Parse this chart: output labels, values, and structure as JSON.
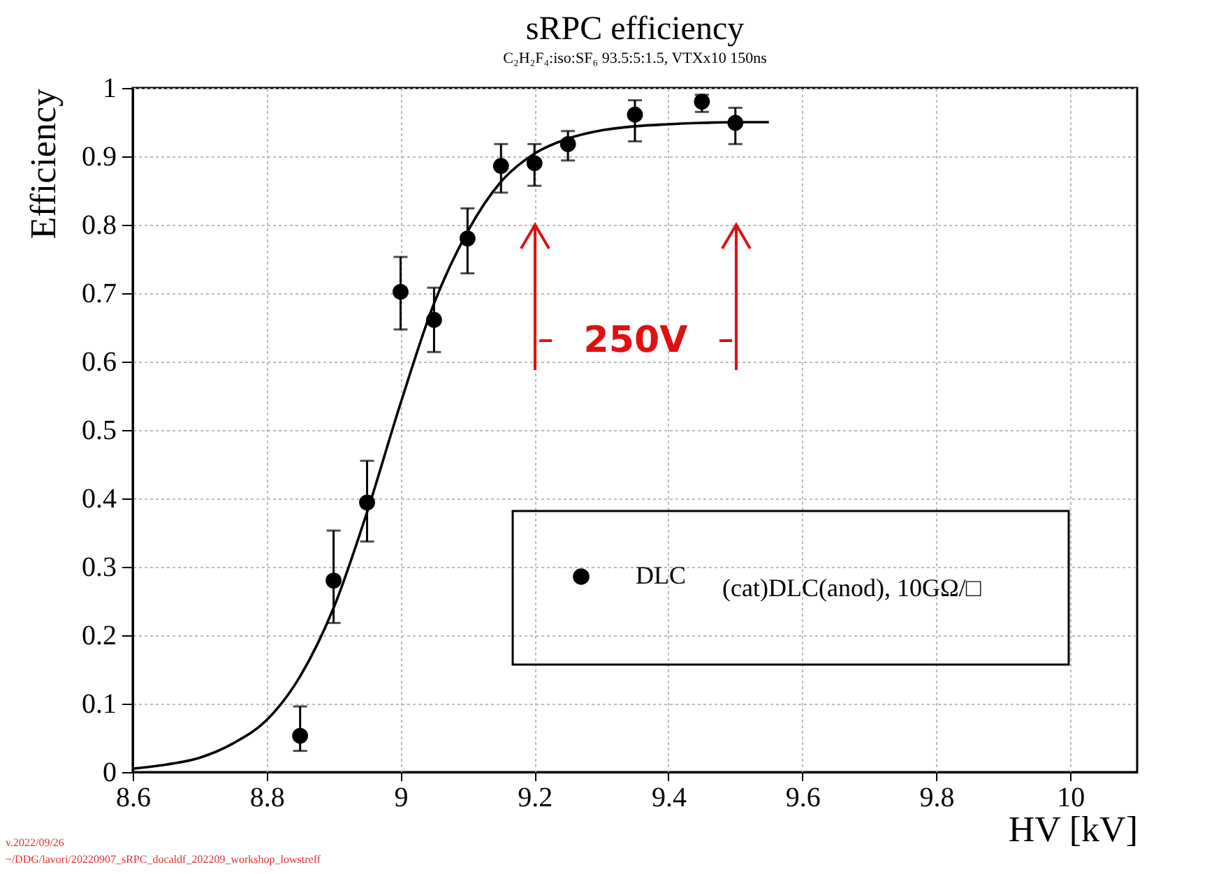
{
  "chart_data": {
    "type": "scatter",
    "title": "sRPC efficiency",
    "subtitle": "C₂H₂F₄:iso:SF₆ 93.5:5:1.5, VTXx10 150ns",
    "xlabel": "HV [kV]",
    "ylabel": "Efficiency",
    "xlim": [
      8.6,
      10.1
    ],
    "xticks": [
      8.6,
      8.8,
      9,
      9.2,
      9.4,
      9.6,
      9.8,
      10
    ],
    "ylim": [
      0,
      1
    ],
    "yticks": [
      0,
      0.1,
      0.2,
      0.3,
      0.4,
      0.5,
      0.6,
      0.7,
      0.8,
      0.9,
      1
    ],
    "grid": true,
    "legend": "bottom right",
    "marker": "circle",
    "line_style": "solid",
    "series": [
      {
        "name": "DLC",
        "color": "#000000",
        "x": [
          8.85,
          8.9,
          8.95,
          9,
          9.05,
          9.1,
          9.15,
          9.2,
          9.25,
          9.35,
          9.45,
          9.5
        ],
        "values": [
          0.053,
          0.28,
          0.394,
          0.702,
          0.661,
          0.78,
          0.886,
          0.89,
          0.918,
          0.961,
          0.98,
          0.949
        ],
        "errors": [
          [
            0.031,
            0.096
          ],
          [
            0.218,
            0.353
          ],
          [
            0.337,
            0.455
          ],
          [
            0.647,
            0.753
          ],
          [
            0.614,
            0.708
          ],
          [
            0.729,
            0.824
          ],
          [
            0.847,
            0.918
          ],
          [
            0.857,
            0.918
          ],
          [
            0.894,
            0.937
          ],
          [
            0.922,
            0.982
          ],
          [
            0.965,
            0.99
          ],
          [
            0.918,
            0.971
          ]
        ]
      },
      {
        "type": "line",
        "marker": "none",
        "color": "#000000",
        "x": [
          8.6,
          8.65,
          8.7,
          8.75,
          8.8,
          8.85,
          8.9,
          8.95,
          9,
          9.05,
          9.1,
          9.15,
          9.2,
          9.25,
          9.3,
          9.35,
          9.4,
          9.45,
          9.5,
          9.55
        ],
        "values": [
          0.005,
          0.011,
          0.021,
          0.042,
          0.076,
          0.14,
          0.24,
          0.38,
          0.539,
          0.685,
          0.79,
          0.863,
          0.904,
          0.926,
          0.938,
          0.944,
          0.947,
          0.949,
          0.95,
          0.95
        ]
      }
    ],
    "annotations": [
      "250V",
      "(cat)DLC(anod), 10GΩ/□",
      "v.2022/09/26",
      "~/DDG/lavori/20220907_sRPC_docaldf_202209_workshop_lowstreff"
    ]
  }
}
